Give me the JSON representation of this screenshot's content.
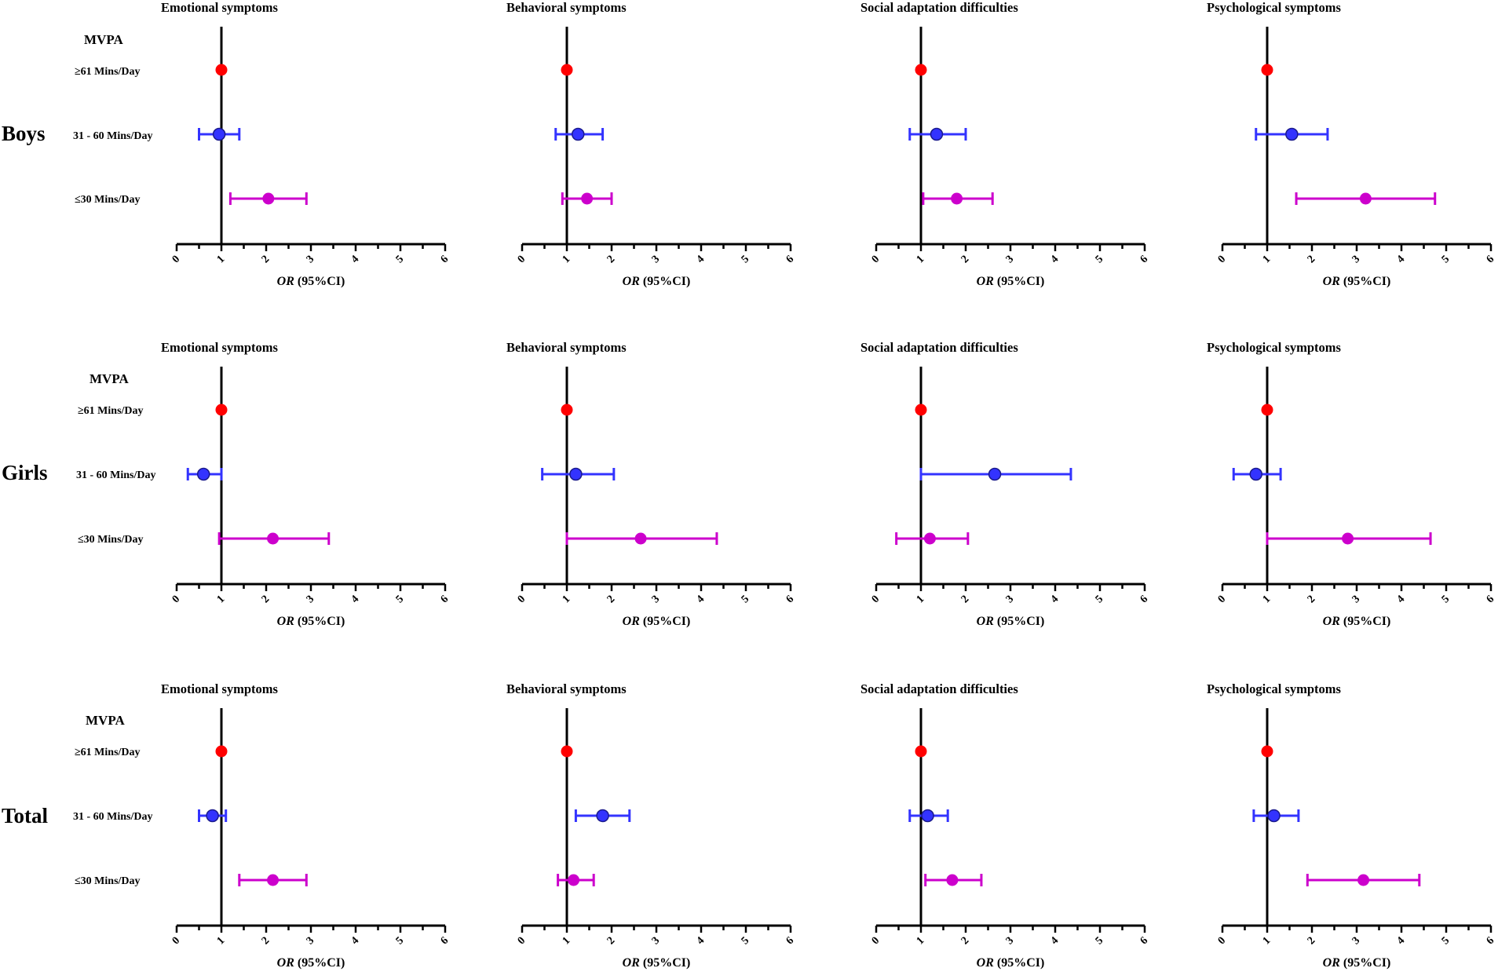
{
  "figure": {
    "group_labels": [
      "Boys",
      "Girls",
      "Total"
    ],
    "row_header": "MVPA",
    "row_labels_boys": [
      "≥61 Mins/Day",
      "31 - 60 Mins/Day",
      "≤30 Mins/Day"
    ],
    "row_labels_girls": [
      "≥61 Mins/Day",
      "31 - 60 Mins/Day",
      "≤30 Mins/Day"
    ],
    "row_labels_total": [
      "≥61 Mins/Day",
      "31 - 60 Mins/Day",
      "≤30 Mins/Day"
    ],
    "colors": {
      "reference": "#ff0000",
      "moderate": "#3333ff",
      "low": "#cc00cc",
      "axis": "#000000"
    }
  },
  "chart_data": [
    {
      "type": "forest",
      "group": "Boys",
      "title": "Emotional symptoms",
      "xlabel_italic": "OR",
      "xlabel_rest": " (95%CI)",
      "xlim": [
        0,
        6
      ],
      "ticks": [
        0,
        1,
        2,
        3,
        4,
        5,
        6
      ],
      "reference_line": 1,
      "categories": [
        "≥61 Mins/Day",
        "31 - 60 Mins/Day",
        "≤30 Mins/Day"
      ],
      "or": [
        1.0,
        0.95,
        2.05
      ],
      "ci_low": [
        null,
        0.5,
        1.2
      ],
      "ci_high": [
        null,
        1.4,
        2.9
      ]
    },
    {
      "type": "forest",
      "group": "Boys",
      "title": "Behavioral symptoms",
      "xlabel_italic": "OR",
      "xlabel_rest": " (95%CI)",
      "xlim": [
        0,
        6
      ],
      "ticks": [
        0,
        1,
        2,
        3,
        4,
        5,
        6
      ],
      "reference_line": 1,
      "categories": [
        "≥61 Mins/Day",
        "31 - 60 Mins/Day",
        "≤30 Mins/Day"
      ],
      "or": [
        1.0,
        1.25,
        1.45
      ],
      "ci_low": [
        null,
        0.75,
        0.9
      ],
      "ci_high": [
        null,
        1.8,
        2.0
      ]
    },
    {
      "type": "forest",
      "group": "Boys",
      "title": "Social adaptation difficulties",
      "xlabel_italic": "OR",
      "xlabel_rest": " (95%CI)",
      "xlim": [
        0,
        6
      ],
      "ticks": [
        0,
        1,
        2,
        3,
        4,
        5,
        6
      ],
      "reference_line": 1,
      "categories": [
        "≥61 Mins/Day",
        "31 - 60 Mins/Day",
        "≤30 Mins/Day"
      ],
      "or": [
        1.0,
        1.35,
        1.8
      ],
      "ci_low": [
        null,
        0.75,
        1.05
      ],
      "ci_high": [
        null,
        2.0,
        2.6
      ]
    },
    {
      "type": "forest",
      "group": "Boys",
      "title": "Psychological symptoms",
      "xlabel_italic": "OR",
      "xlabel_rest": " (95%CI)",
      "xlim": [
        0,
        6
      ],
      "ticks": [
        0,
        1,
        2,
        3,
        4,
        5,
        6
      ],
      "reference_line": 1,
      "categories": [
        "≥61 Mins/Day",
        "31 - 60 Mins/Day",
        "≤30 Mins/Day"
      ],
      "or": [
        1.0,
        1.55,
        3.2
      ],
      "ci_low": [
        null,
        0.75,
        1.65
      ],
      "ci_high": [
        null,
        2.35,
        4.75
      ]
    },
    {
      "type": "forest",
      "group": "Girls",
      "title": "Emotional symptoms",
      "xlabel_italic": "OR",
      "xlabel_rest": " (95%CI)",
      "xlim": [
        0,
        6
      ],
      "ticks": [
        0,
        1,
        2,
        3,
        4,
        5,
        6
      ],
      "reference_line": 1,
      "categories": [
        "≥61 Mins/Day",
        "31 - 60 Mins/Day",
        "≤30 Mins/Day"
      ],
      "or": [
        1.0,
        0.6,
        2.15
      ],
      "ci_low": [
        null,
        0.25,
        0.95
      ],
      "ci_high": [
        null,
        1.0,
        3.4
      ]
    },
    {
      "type": "forest",
      "group": "Girls",
      "title": "Behavioral symptoms",
      "xlabel_italic": "OR",
      "xlabel_rest": " (95%CI)",
      "xlim": [
        0,
        6
      ],
      "ticks": [
        0,
        1,
        2,
        3,
        4,
        5,
        6
      ],
      "reference_line": 1,
      "categories": [
        "≥61 Mins/Day",
        "31 - 60 Mins/Day",
        "≤30 Mins/Day"
      ],
      "or": [
        1.0,
        1.2,
        2.65
      ],
      "ci_low": [
        null,
        0.45,
        1.0
      ],
      "ci_high": [
        null,
        2.05,
        4.35
      ]
    },
    {
      "type": "forest",
      "group": "Girls",
      "title": "Social adaptation difficulties",
      "xlabel_italic": "OR",
      "xlabel_rest": " (95%CI)",
      "xlim": [
        0,
        6
      ],
      "ticks": [
        0,
        1,
        2,
        3,
        4,
        5,
        6
      ],
      "reference_line": 1,
      "categories": [
        "≥61 Mins/Day",
        "31 - 60 Mins/Day",
        "≤30 Mins/Day"
      ],
      "or": [
        1.0,
        2.65,
        1.2
      ],
      "ci_low": [
        null,
        1.0,
        0.45
      ],
      "ci_high": [
        null,
        4.35,
        2.05
      ]
    },
    {
      "type": "forest",
      "group": "Girls",
      "title": "Psychological symptoms",
      "xlabel_italic": "OR",
      "xlabel_rest": " (95%CI)",
      "xlim": [
        0,
        6
      ],
      "ticks": [
        0,
        1,
        2,
        3,
        4,
        5,
        6
      ],
      "reference_line": 1,
      "categories": [
        "≥61 Mins/Day",
        "31 - 60 Mins/Day",
        "≤30 Mins/Day"
      ],
      "or": [
        1.0,
        0.75,
        2.8
      ],
      "ci_low": [
        null,
        0.25,
        1.0
      ],
      "ci_high": [
        null,
        1.3,
        4.65
      ]
    },
    {
      "type": "forest",
      "group": "Total",
      "title": "Emotional symptoms",
      "xlabel_italic": "OR",
      "xlabel_rest": " (95%CI)",
      "xlim": [
        0,
        6
      ],
      "ticks": [
        0,
        1,
        2,
        3,
        4,
        5,
        6
      ],
      "reference_line": 1,
      "categories": [
        "≥61 Mins/Day",
        "31 - 60 Mins/Day",
        "≤30 Mins/Day"
      ],
      "or": [
        1.0,
        0.8,
        2.15
      ],
      "ci_low": [
        null,
        0.5,
        1.4
      ],
      "ci_high": [
        null,
        1.1,
        2.9
      ]
    },
    {
      "type": "forest",
      "group": "Total",
      "title": "Behavioral symptoms",
      "xlabel_italic": "OR",
      "xlabel_rest": " (95%CI)",
      "xlim": [
        0,
        6
      ],
      "ticks": [
        0,
        1,
        2,
        3,
        4,
        5,
        6
      ],
      "reference_line": 1,
      "categories": [
        "≥61 Mins/Day",
        "31 - 60 Mins/Day",
        "≤30 Mins/Day"
      ],
      "or": [
        1.0,
        1.8,
        1.15
      ],
      "ci_low": [
        null,
        1.2,
        0.8
      ],
      "ci_high": [
        null,
        2.4,
        1.6
      ]
    },
    {
      "type": "forest",
      "group": "Total",
      "title": "Social adaptation difficulties",
      "xlabel_italic": "OR",
      "xlabel_rest": " (95%CI)",
      "xlim": [
        0,
        6
      ],
      "ticks": [
        0,
        1,
        2,
        3,
        4,
        5,
        6
      ],
      "reference_line": 1,
      "categories": [
        "≥61 Mins/Day",
        "31 - 60 Mins/Day",
        "≤30 Mins/Day"
      ],
      "or": [
        1.0,
        1.15,
        1.7
      ],
      "ci_low": [
        null,
        0.75,
        1.1
      ],
      "ci_high": [
        null,
        1.6,
        2.35
      ]
    },
    {
      "type": "forest",
      "group": "Total",
      "title": "Psychological symptoms",
      "xlabel_italic": "OR",
      "xlabel_rest": " (95%CI)",
      "xlim": [
        0,
        6
      ],
      "ticks": [
        0,
        1,
        2,
        3,
        4,
        5,
        6
      ],
      "reference_line": 1,
      "categories": [
        "≥61 Mins/Day",
        "31 - 60 Mins/Day",
        "≤30 Mins/Day"
      ],
      "or": [
        1.0,
        1.15,
        3.15
      ],
      "ci_low": [
        null,
        0.7,
        1.9
      ],
      "ci_high": [
        null,
        1.7,
        4.4
      ]
    }
  ]
}
